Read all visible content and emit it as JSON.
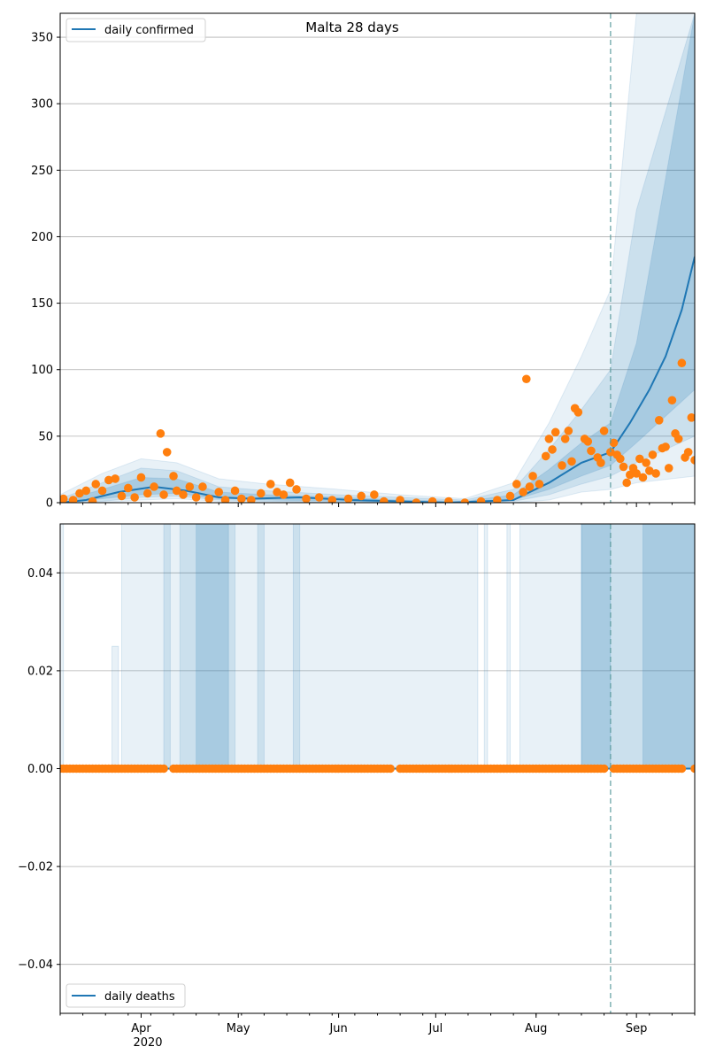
{
  "title": "Malta 28 days",
  "colors": {
    "line": "#1f77b4",
    "points": "#ff7f0e",
    "band": "#1f77b4",
    "grid": "#b0b0b0",
    "forecast_line": "#5f9ea0"
  },
  "x_axis": {
    "month_labels": [
      "Apr",
      "May",
      "Jun",
      "Jul",
      "Aug",
      "Sep"
    ],
    "year_label": "2020",
    "month_dates": [
      "2020-04-01",
      "2020-05-01",
      "2020-06-01",
      "2020-07-01",
      "2020-08-01",
      "2020-09-01"
    ],
    "start": "2020-03-07",
    "end": "2020-09-19",
    "forecast_start": "2020-08-24"
  },
  "chart_data": [
    {
      "type": "line",
      "legend": [
        "daily confirmed"
      ],
      "legend_position": "top-left",
      "grid": true,
      "ylim": [
        0,
        368
      ],
      "yticks": [
        "0",
        "50",
        "100",
        "150",
        "200",
        "250",
        "300",
        "350"
      ],
      "series": [
        {
          "name": "daily confirmed",
          "kind": "model line",
          "points": [
            [
              "2020-03-07",
              0
            ],
            [
              "2020-03-15",
              2
            ],
            [
              "2020-03-25",
              8
            ],
            [
              "2020-04-05",
              12
            ],
            [
              "2020-04-15",
              9
            ],
            [
              "2020-04-25",
              4
            ],
            [
              "2020-05-05",
              3
            ],
            [
              "2020-05-20",
              4
            ],
            [
              "2020-06-05",
              2
            ],
            [
              "2020-06-20",
              1
            ],
            [
              "2020-07-05",
              0
            ],
            [
              "2020-07-25",
              2
            ],
            [
              "2020-08-05",
              15
            ],
            [
              "2020-08-15",
              30
            ],
            [
              "2020-08-24",
              38
            ],
            [
              "2020-08-30",
              60
            ],
            [
              "2020-09-05",
              85
            ],
            [
              "2020-09-10",
              110
            ],
            [
              "2020-09-15",
              145
            ],
            [
              "2020-09-19",
              185
            ]
          ]
        },
        {
          "name": "observed",
          "kind": "scatter",
          "points": [
            [
              "2020-03-08",
              3
            ],
            [
              "2020-03-11",
              2
            ],
            [
              "2020-03-13",
              7
            ],
            [
              "2020-03-15",
              9
            ],
            [
              "2020-03-17",
              1
            ],
            [
              "2020-03-18",
              14
            ],
            [
              "2020-03-20",
              9
            ],
            [
              "2020-03-22",
              17
            ],
            [
              "2020-03-24",
              18
            ],
            [
              "2020-03-26",
              5
            ],
            [
              "2020-03-28",
              11
            ],
            [
              "2020-03-30",
              4
            ],
            [
              "2020-04-01",
              19
            ],
            [
              "2020-04-03",
              7
            ],
            [
              "2020-04-05",
              12
            ],
            [
              "2020-04-07",
              52
            ],
            [
              "2020-04-08",
              6
            ],
            [
              "2020-04-09",
              38
            ],
            [
              "2020-04-11",
              20
            ],
            [
              "2020-04-12",
              9
            ],
            [
              "2020-04-14",
              6
            ],
            [
              "2020-04-16",
              12
            ],
            [
              "2020-04-18",
              4
            ],
            [
              "2020-04-20",
              12
            ],
            [
              "2020-04-22",
              3
            ],
            [
              "2020-04-25",
              8
            ],
            [
              "2020-04-27",
              2
            ],
            [
              "2020-04-30",
              9
            ],
            [
              "2020-05-02",
              3
            ],
            [
              "2020-05-05",
              2
            ],
            [
              "2020-05-08",
              7
            ],
            [
              "2020-05-11",
              14
            ],
            [
              "2020-05-13",
              8
            ],
            [
              "2020-05-15",
              6
            ],
            [
              "2020-05-17",
              15
            ],
            [
              "2020-05-19",
              10
            ],
            [
              "2020-05-22",
              3
            ],
            [
              "2020-05-26",
              4
            ],
            [
              "2020-05-30",
              2
            ],
            [
              "2020-06-04",
              3
            ],
            [
              "2020-06-08",
              5
            ],
            [
              "2020-06-12",
              6
            ],
            [
              "2020-06-15",
              1
            ],
            [
              "2020-06-20",
              2
            ],
            [
              "2020-06-25",
              0
            ],
            [
              "2020-06-30",
              1
            ],
            [
              "2020-07-05",
              1
            ],
            [
              "2020-07-10",
              0
            ],
            [
              "2020-07-15",
              1
            ],
            [
              "2020-07-20",
              2
            ],
            [
              "2020-07-24",
              5
            ],
            [
              "2020-07-26",
              14
            ],
            [
              "2020-07-28",
              8
            ],
            [
              "2020-07-29",
              93
            ],
            [
              "2020-07-30",
              12
            ],
            [
              "2020-07-31",
              20
            ],
            [
              "2020-08-02",
              14
            ],
            [
              "2020-08-04",
              35
            ],
            [
              "2020-08-05",
              48
            ],
            [
              "2020-08-06",
              40
            ],
            [
              "2020-08-07",
              53
            ],
            [
              "2020-08-09",
              28
            ],
            [
              "2020-08-10",
              48
            ],
            [
              "2020-08-11",
              54
            ],
            [
              "2020-08-12",
              31
            ],
            [
              "2020-08-13",
              71
            ],
            [
              "2020-08-14",
              68
            ],
            [
              "2020-08-16",
              48
            ],
            [
              "2020-08-17",
              46
            ],
            [
              "2020-08-18",
              39
            ],
            [
              "2020-08-20",
              34
            ],
            [
              "2020-08-21",
              30
            ],
            [
              "2020-08-22",
              54
            ],
            [
              "2020-08-24",
              38
            ],
            [
              "2020-08-25",
              45
            ],
            [
              "2020-08-26",
              36
            ],
            [
              "2020-08-27",
              33
            ],
            [
              "2020-08-28",
              27
            ],
            [
              "2020-08-29",
              15
            ],
            [
              "2020-08-30",
              21
            ],
            [
              "2020-08-31",
              26
            ],
            [
              "2020-09-01",
              22
            ],
            [
              "2020-09-02",
              33
            ],
            [
              "2020-09-03",
              19
            ],
            [
              "2020-09-04",
              30
            ],
            [
              "2020-09-05",
              24
            ],
            [
              "2020-09-06",
              36
            ],
            [
              "2020-09-07",
              22
            ],
            [
              "2020-09-08",
              62
            ],
            [
              "2020-09-09",
              41
            ],
            [
              "2020-09-10",
              42
            ],
            [
              "2020-09-11",
              26
            ],
            [
              "2020-09-12",
              77
            ],
            [
              "2020-09-13",
              52
            ],
            [
              "2020-09-14",
              48
            ],
            [
              "2020-09-15",
              105
            ],
            [
              "2020-09-16",
              34
            ],
            [
              "2020-09-17",
              38
            ],
            [
              "2020-09-18",
              64
            ],
            [
              "2020-09-19",
              32
            ]
          ]
        }
      ],
      "bands": [
        {
          "points": [
            [
              "2020-03-07",
              0,
              6
            ],
            [
              "2020-03-20",
              0,
              22
            ],
            [
              "2020-04-01",
              2,
              33
            ],
            [
              "2020-04-12",
              3,
              30
            ],
            [
              "2020-04-25",
              1,
              18
            ],
            [
              "2020-05-10",
              0,
              14
            ],
            [
              "2020-06-01",
              0,
              10
            ],
            [
              "2020-06-20",
              0,
              6
            ],
            [
              "2020-07-10",
              0,
              3
            ],
            [
              "2020-07-25",
              0,
              15
            ],
            [
              "2020-08-05",
              2,
              60
            ],
            [
              "2020-08-15",
              8,
              110
            ],
            [
              "2020-08-24",
              10,
              160
            ],
            [
              "2020-09-01",
              15,
              368
            ],
            [
              "2020-09-19",
              20,
              368
            ]
          ]
        },
        {
          "points": [
            [
              "2020-03-07",
              0,
              3
            ],
            [
              "2020-03-20",
              1,
              15
            ],
            [
              "2020-04-01",
              4,
              26
            ],
            [
              "2020-04-12",
              5,
              24
            ],
            [
              "2020-04-25",
              2,
              12
            ],
            [
              "2020-05-10",
              1,
              9
            ],
            [
              "2020-06-01",
              0,
              6
            ],
            [
              "2020-06-20",
              0,
              4
            ],
            [
              "2020-07-10",
              0,
              2
            ],
            [
              "2020-07-25",
              1,
              10
            ],
            [
              "2020-08-05",
              6,
              40
            ],
            [
              "2020-08-15",
              14,
              70
            ],
            [
              "2020-08-24",
              20,
              100
            ],
            [
              "2020-09-01",
              30,
              220
            ],
            [
              "2020-09-19",
              50,
              368
            ]
          ]
        },
        {
          "points": [
            [
              "2020-03-07",
              0,
              1
            ],
            [
              "2020-03-20",
              3,
              10
            ],
            [
              "2020-04-01",
              6,
              19
            ],
            [
              "2020-04-12",
              7,
              18
            ],
            [
              "2020-04-25",
              3,
              8
            ],
            [
              "2020-05-10",
              2,
              6
            ],
            [
              "2020-06-01",
              1,
              4
            ],
            [
              "2020-06-20",
              0,
              2
            ],
            [
              "2020-07-10",
              0,
              1
            ],
            [
              "2020-07-25",
              2,
              6
            ],
            [
              "2020-08-05",
              10,
              25
            ],
            [
              "2020-08-15",
              20,
              45
            ],
            [
              "2020-08-24",
              28,
              60
            ],
            [
              "2020-09-01",
              45,
              120
            ],
            [
              "2020-09-19",
              85,
              368
            ]
          ]
        }
      ]
    },
    {
      "type": "line",
      "legend": [
        "daily deaths"
      ],
      "legend_position": "bottom-left",
      "grid": true,
      "ylim": [
        -0.05,
        0.05
      ],
      "yticks": [
        "−0.04",
        "−0.02",
        "0.00",
        "0.02",
        "0.04"
      ],
      "series": [
        {
          "name": "daily deaths",
          "kind": "model line",
          "points": [
            [
              "2020-03-07",
              0
            ],
            [
              "2020-09-19",
              0
            ]
          ]
        },
        {
          "name": "observed",
          "kind": "scatter",
          "value": 0,
          "gaps": [
            [
              "2020-04-09",
              "2020-04-10"
            ],
            [
              "2020-06-18",
              "2020-06-19"
            ],
            [
              "2020-08-23",
              "2020-08-24"
            ],
            [
              "2020-09-16",
              "2020-09-18"
            ]
          ]
        }
      ],
      "bands": [
        {
          "spans": [
            [
              "2020-03-07",
              "2020-03-08",
              0.05
            ],
            [
              "2020-03-23",
              "2020-03-25",
              0.025
            ],
            [
              "2020-03-26",
              "2020-07-14",
              0.05
            ],
            [
              "2020-07-16",
              "2020-07-17",
              0.05
            ],
            [
              "2020-07-23",
              "2020-07-24",
              0.05
            ],
            [
              "2020-07-27",
              "2020-09-19",
              0.05
            ]
          ]
        },
        {
          "spans": [
            [
              "2020-04-08",
              "2020-04-10",
              0.05
            ],
            [
              "2020-04-13",
              "2020-04-30",
              0.05
            ],
            [
              "2020-05-07",
              "2020-05-09",
              0.05
            ],
            [
              "2020-05-18",
              "2020-05-20",
              0.05
            ],
            [
              "2020-08-15",
              "2020-09-19",
              0.05
            ]
          ]
        },
        {
          "spans": [
            [
              "2020-04-18",
              "2020-04-28",
              0.05
            ],
            [
              "2020-08-15",
              "2020-08-24",
              0.05
            ],
            [
              "2020-09-03",
              "2020-09-19",
              0.05
            ]
          ]
        }
      ]
    }
  ]
}
